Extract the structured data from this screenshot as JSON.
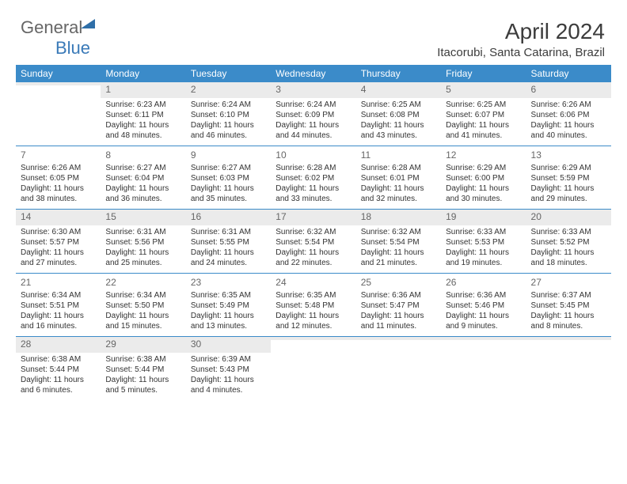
{
  "brand": {
    "part1": "General",
    "part2": "Blue"
  },
  "title": "April 2024",
  "location": "Itacorubi, Santa Catarina, Brazil",
  "colors": {
    "header_bg": "#3b8bc9",
    "header_text": "#ffffff",
    "border": "#3b8bc9",
    "shade": "#ebebeb",
    "text": "#333333",
    "daynum": "#666666",
    "bg": "#ffffff"
  },
  "weekdays": [
    "Sunday",
    "Monday",
    "Tuesday",
    "Wednesday",
    "Thursday",
    "Friday",
    "Saturday"
  ],
  "weeks": [
    [
      {
        "num": "",
        "lines": []
      },
      {
        "num": "1",
        "lines": [
          "Sunrise: 6:23 AM",
          "Sunset: 6:11 PM",
          "Daylight: 11 hours",
          "and 48 minutes."
        ]
      },
      {
        "num": "2",
        "lines": [
          "Sunrise: 6:24 AM",
          "Sunset: 6:10 PM",
          "Daylight: 11 hours",
          "and 46 minutes."
        ]
      },
      {
        "num": "3",
        "lines": [
          "Sunrise: 6:24 AM",
          "Sunset: 6:09 PM",
          "Daylight: 11 hours",
          "and 44 minutes."
        ]
      },
      {
        "num": "4",
        "lines": [
          "Sunrise: 6:25 AM",
          "Sunset: 6:08 PM",
          "Daylight: 11 hours",
          "and 43 minutes."
        ]
      },
      {
        "num": "5",
        "lines": [
          "Sunrise: 6:25 AM",
          "Sunset: 6:07 PM",
          "Daylight: 11 hours",
          "and 41 minutes."
        ]
      },
      {
        "num": "6",
        "lines": [
          "Sunrise: 6:26 AM",
          "Sunset: 6:06 PM",
          "Daylight: 11 hours",
          "and 40 minutes."
        ]
      }
    ],
    [
      {
        "num": "7",
        "lines": [
          "Sunrise: 6:26 AM",
          "Sunset: 6:05 PM",
          "Daylight: 11 hours",
          "and 38 minutes."
        ]
      },
      {
        "num": "8",
        "lines": [
          "Sunrise: 6:27 AM",
          "Sunset: 6:04 PM",
          "Daylight: 11 hours",
          "and 36 minutes."
        ]
      },
      {
        "num": "9",
        "lines": [
          "Sunrise: 6:27 AM",
          "Sunset: 6:03 PM",
          "Daylight: 11 hours",
          "and 35 minutes."
        ]
      },
      {
        "num": "10",
        "lines": [
          "Sunrise: 6:28 AM",
          "Sunset: 6:02 PM",
          "Daylight: 11 hours",
          "and 33 minutes."
        ]
      },
      {
        "num": "11",
        "lines": [
          "Sunrise: 6:28 AM",
          "Sunset: 6:01 PM",
          "Daylight: 11 hours",
          "and 32 minutes."
        ]
      },
      {
        "num": "12",
        "lines": [
          "Sunrise: 6:29 AM",
          "Sunset: 6:00 PM",
          "Daylight: 11 hours",
          "and 30 minutes."
        ]
      },
      {
        "num": "13",
        "lines": [
          "Sunrise: 6:29 AM",
          "Sunset: 5:59 PM",
          "Daylight: 11 hours",
          "and 29 minutes."
        ]
      }
    ],
    [
      {
        "num": "14",
        "lines": [
          "Sunrise: 6:30 AM",
          "Sunset: 5:57 PM",
          "Daylight: 11 hours",
          "and 27 minutes."
        ]
      },
      {
        "num": "15",
        "lines": [
          "Sunrise: 6:31 AM",
          "Sunset: 5:56 PM",
          "Daylight: 11 hours",
          "and 25 minutes."
        ]
      },
      {
        "num": "16",
        "lines": [
          "Sunrise: 6:31 AM",
          "Sunset: 5:55 PM",
          "Daylight: 11 hours",
          "and 24 minutes."
        ]
      },
      {
        "num": "17",
        "lines": [
          "Sunrise: 6:32 AM",
          "Sunset: 5:54 PM",
          "Daylight: 11 hours",
          "and 22 minutes."
        ]
      },
      {
        "num": "18",
        "lines": [
          "Sunrise: 6:32 AM",
          "Sunset: 5:54 PM",
          "Daylight: 11 hours",
          "and 21 minutes."
        ]
      },
      {
        "num": "19",
        "lines": [
          "Sunrise: 6:33 AM",
          "Sunset: 5:53 PM",
          "Daylight: 11 hours",
          "and 19 minutes."
        ]
      },
      {
        "num": "20",
        "lines": [
          "Sunrise: 6:33 AM",
          "Sunset: 5:52 PM",
          "Daylight: 11 hours",
          "and 18 minutes."
        ]
      }
    ],
    [
      {
        "num": "21",
        "lines": [
          "Sunrise: 6:34 AM",
          "Sunset: 5:51 PM",
          "Daylight: 11 hours",
          "and 16 minutes."
        ]
      },
      {
        "num": "22",
        "lines": [
          "Sunrise: 6:34 AM",
          "Sunset: 5:50 PM",
          "Daylight: 11 hours",
          "and 15 minutes."
        ]
      },
      {
        "num": "23",
        "lines": [
          "Sunrise: 6:35 AM",
          "Sunset: 5:49 PM",
          "Daylight: 11 hours",
          "and 13 minutes."
        ]
      },
      {
        "num": "24",
        "lines": [
          "Sunrise: 6:35 AM",
          "Sunset: 5:48 PM",
          "Daylight: 11 hours",
          "and 12 minutes."
        ]
      },
      {
        "num": "25",
        "lines": [
          "Sunrise: 6:36 AM",
          "Sunset: 5:47 PM",
          "Daylight: 11 hours",
          "and 11 minutes."
        ]
      },
      {
        "num": "26",
        "lines": [
          "Sunrise: 6:36 AM",
          "Sunset: 5:46 PM",
          "Daylight: 11 hours",
          "and 9 minutes."
        ]
      },
      {
        "num": "27",
        "lines": [
          "Sunrise: 6:37 AM",
          "Sunset: 5:45 PM",
          "Daylight: 11 hours",
          "and 8 minutes."
        ]
      }
    ],
    [
      {
        "num": "28",
        "lines": [
          "Sunrise: 6:38 AM",
          "Sunset: 5:44 PM",
          "Daylight: 11 hours",
          "and 6 minutes."
        ]
      },
      {
        "num": "29",
        "lines": [
          "Sunrise: 6:38 AM",
          "Sunset: 5:44 PM",
          "Daylight: 11 hours",
          "and 5 minutes."
        ]
      },
      {
        "num": "30",
        "lines": [
          "Sunrise: 6:39 AM",
          "Sunset: 5:43 PM",
          "Daylight: 11 hours",
          "and 4 minutes."
        ]
      },
      {
        "num": "",
        "lines": []
      },
      {
        "num": "",
        "lines": []
      },
      {
        "num": "",
        "lines": []
      },
      {
        "num": "",
        "lines": []
      }
    ]
  ]
}
